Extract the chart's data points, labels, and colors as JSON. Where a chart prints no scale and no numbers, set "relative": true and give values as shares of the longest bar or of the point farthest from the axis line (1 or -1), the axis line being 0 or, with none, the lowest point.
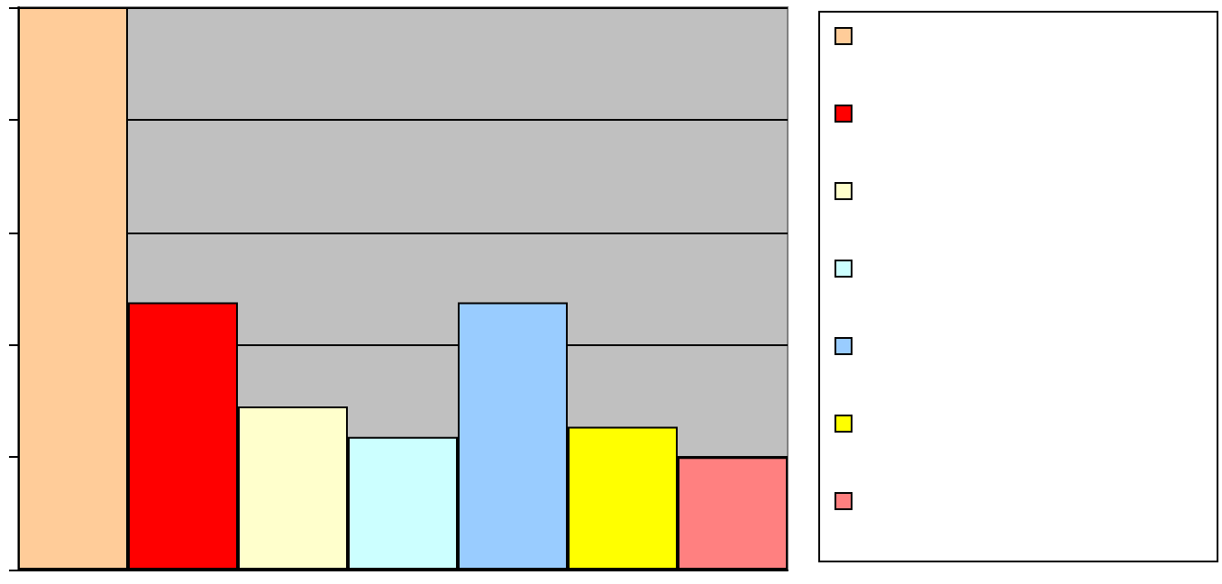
{
  "chart_data": {
    "type": "bar",
    "relative": true,
    "categories": [
      null,
      null,
      null,
      null,
      null,
      null,
      null
    ],
    "values": [
      1,
      0.475,
      0.29,
      0.236,
      0.475,
      0.254,
      0.2
    ],
    "colors": [
      "#ffcc99",
      "#ff0000",
      "#ffffcc",
      "#ccffff",
      "#99ccff",
      "#ffff00",
      "#ff8080"
    ],
    "grid": true
  }
}
